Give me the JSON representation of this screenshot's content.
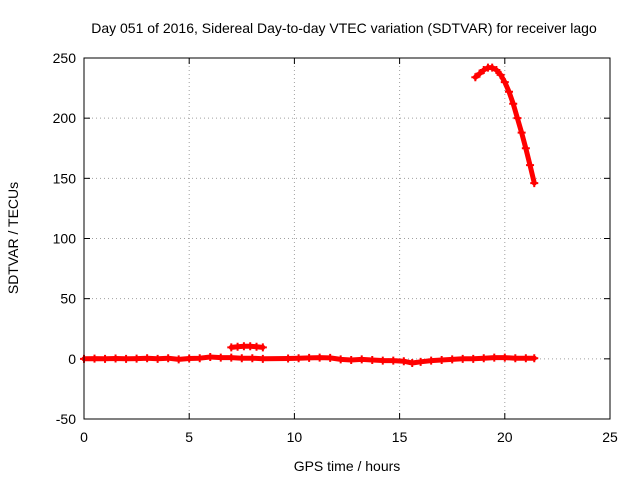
{
  "chart_data": {
    "type": "scatter",
    "title": "Day 051 of 2016, Sidereal Day-to-day VTEC variation (SDTVAR) for receiver lago",
    "xlabel": "GPS time / hours",
    "ylabel": "SDTVAR / TECUs",
    "xlim": [
      0,
      25
    ],
    "ylim": [
      -50,
      250
    ],
    "xticks": [
      0,
      5,
      10,
      15,
      20,
      25
    ],
    "yticks": [
      -50,
      0,
      50,
      100,
      150,
      200,
      250
    ],
    "grid": true,
    "marker": "plus",
    "colors": {
      "series": "#ff0000",
      "grid": "#a0a0a0",
      "axes": "#000000"
    },
    "series": [
      {
        "values": [
          [
            0.0,
            0.0
          ],
          [
            0.5,
            0.2
          ],
          [
            1.0,
            0.0
          ],
          [
            1.5,
            0.3
          ],
          [
            2.0,
            0.0
          ],
          [
            2.5,
            0.2
          ],
          [
            3.0,
            0.5
          ],
          [
            3.5,
            0.0
          ],
          [
            4.0,
            0.5
          ],
          [
            4.5,
            -0.5
          ],
          [
            5.0,
            0.3
          ],
          [
            5.5,
            0.5
          ],
          [
            6.0,
            1.5
          ],
          [
            6.5,
            1.0
          ],
          [
            7.0,
            1.0
          ],
          [
            7.5,
            0.5
          ],
          [
            8.0,
            0.5
          ],
          [
            8.5,
            0.0
          ],
          [
            9.7,
            0.3
          ],
          [
            10.2,
            0.5
          ],
          [
            10.7,
            0.8
          ],
          [
            11.2,
            1.0
          ],
          [
            11.7,
            0.8
          ],
          [
            12.2,
            -0.5
          ],
          [
            12.7,
            -1.0
          ],
          [
            13.2,
            -0.5
          ],
          [
            13.7,
            -1.0
          ],
          [
            14.2,
            -1.5
          ],
          [
            14.7,
            -1.5
          ],
          [
            15.2,
            -2.0
          ],
          [
            15.6,
            -3.5
          ],
          [
            16.0,
            -2.5
          ],
          [
            16.5,
            -1.5
          ],
          [
            17.0,
            -1.0
          ],
          [
            17.5,
            -0.5
          ],
          [
            18.0,
            0.0
          ],
          [
            18.5,
            0.0
          ],
          [
            19.0,
            0.5
          ],
          [
            19.5,
            1.0
          ],
          [
            20.0,
            1.0
          ],
          [
            20.5,
            0.5
          ],
          [
            21.0,
            0.5
          ],
          [
            21.4,
            0.5
          ]
        ]
      },
      {
        "values": [
          [
            7.0,
            9.5
          ],
          [
            7.3,
            10.0
          ],
          [
            7.6,
            10.5
          ],
          [
            7.9,
            10.5
          ],
          [
            8.2,
            10.0
          ],
          [
            8.5,
            9.5
          ]
        ]
      },
      {
        "values": [
          [
            18.6,
            234
          ],
          [
            18.8,
            237
          ],
          [
            19.0,
            240
          ],
          [
            19.2,
            242
          ],
          [
            19.4,
            242
          ],
          [
            19.6,
            240
          ],
          [
            19.8,
            236
          ],
          [
            20.0,
            230
          ],
          [
            20.2,
            222
          ],
          [
            20.4,
            212
          ],
          [
            20.6,
            200
          ],
          [
            20.8,
            188
          ],
          [
            21.0,
            175
          ],
          [
            21.2,
            161
          ],
          [
            21.4,
            146
          ]
        ]
      }
    ]
  }
}
